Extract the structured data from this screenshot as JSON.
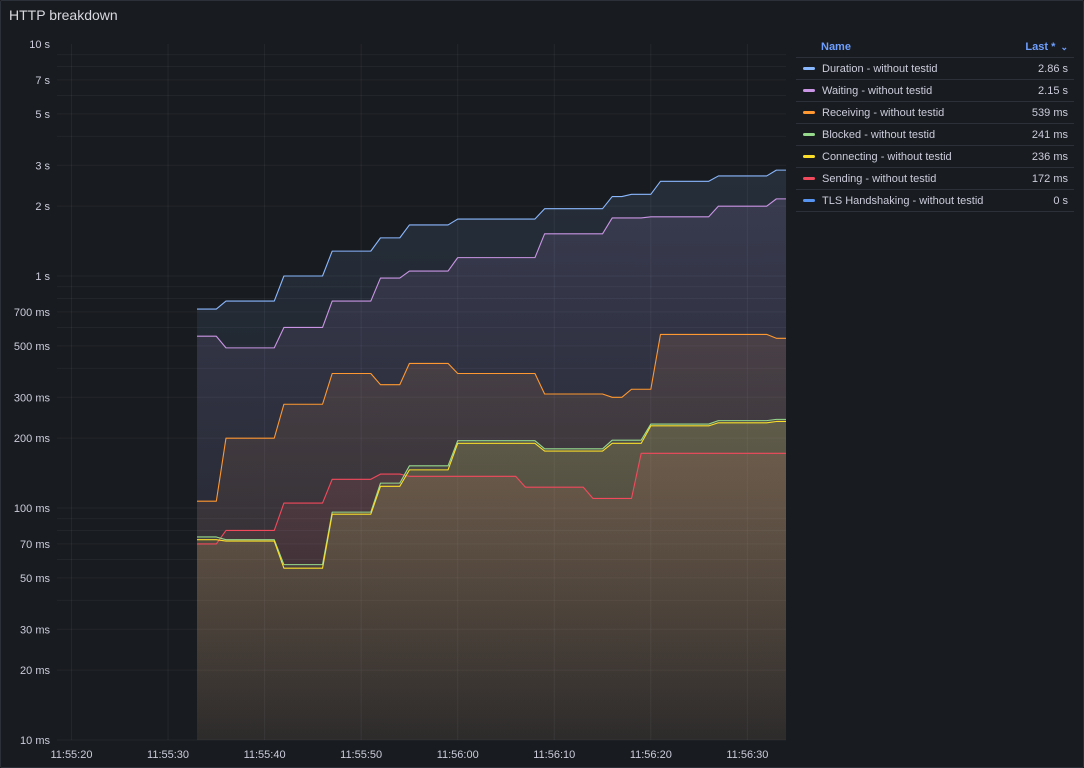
{
  "panel": {
    "title": "HTTP breakdown"
  },
  "legend": {
    "name_header": "Name",
    "value_header": "Last *",
    "sort_icon": "chevron-down-icon",
    "items": [
      {
        "name": "Duration - without testid",
        "value": "2.86 s",
        "color": "#8ab8ff"
      },
      {
        "name": "Waiting - without testid",
        "value": "2.15 s",
        "color": "#ca95e5"
      },
      {
        "name": "Receiving - without testid",
        "value": "539 ms",
        "color": "#ff9830"
      },
      {
        "name": "Blocked - without testid",
        "value": "241 ms",
        "color": "#96d98d"
      },
      {
        "name": "Connecting - without testid",
        "value": "236 ms",
        "color": "#fade2a"
      },
      {
        "name": "Sending - without testid",
        "value": "172 ms",
        "color": "#f2495c"
      },
      {
        "name": "TLS Handshaking - without testid",
        "value": "0 s",
        "color": "#5794f2"
      }
    ]
  },
  "chart_data": {
    "type": "line",
    "title": "HTTP breakdown",
    "yscale": "log",
    "ylim_ms": [
      10,
      10000
    ],
    "xlim_seconds_after_11_55_20": [
      -1.5,
      74
    ],
    "y_ticks": [
      {
        "v": 10000,
        "label": "10 s"
      },
      {
        "v": 7000,
        "label": "7 s"
      },
      {
        "v": 5000,
        "label": "5 s"
      },
      {
        "v": 3000,
        "label": "3 s"
      },
      {
        "v": 2000,
        "label": "2 s"
      },
      {
        "v": 1000,
        "label": "1 s"
      },
      {
        "v": 700,
        "label": "700 ms"
      },
      {
        "v": 500,
        "label": "500 ms"
      },
      {
        "v": 300,
        "label": "300 ms"
      },
      {
        "v": 200,
        "label": "200 ms"
      },
      {
        "v": 100,
        "label": "100 ms"
      },
      {
        "v": 70,
        "label": "70 ms"
      },
      {
        "v": 50,
        "label": "50 ms"
      },
      {
        "v": 30,
        "label": "30 ms"
      },
      {
        "v": 20,
        "label": "20 ms"
      },
      {
        "v": 10,
        "label": "10 ms"
      }
    ],
    "x_ticks": [
      {
        "t": 0,
        "label": "11:55:20"
      },
      {
        "t": 10,
        "label": "11:55:30"
      },
      {
        "t": 20,
        "label": "11:55:40"
      },
      {
        "t": 30,
        "label": "11:55:50"
      },
      {
        "t": 40,
        "label": "11:56:00"
      },
      {
        "t": 50,
        "label": "11:56:10"
      },
      {
        "t": 60,
        "label": "11:56:20"
      },
      {
        "t": 70,
        "label": "11:56:30"
      }
    ],
    "grid": true,
    "legend_position": "right",
    "series": [
      {
        "name": "Sending - without testid",
        "color": "#f2495c",
        "points": [
          [
            13,
            70
          ],
          [
            15,
            70
          ],
          [
            16,
            80
          ],
          [
            21,
            80
          ],
          [
            22,
            105
          ],
          [
            26,
            105
          ],
          [
            27,
            133
          ],
          [
            31,
            133
          ],
          [
            32,
            140
          ],
          [
            34,
            140
          ],
          [
            35,
            137
          ],
          [
            46,
            137
          ],
          [
            47,
            123
          ],
          [
            53,
            123
          ],
          [
            54,
            110
          ],
          [
            58,
            110
          ],
          [
            59,
            172
          ],
          [
            74,
            172
          ]
        ]
      },
      {
        "name": "Blocked - without testid",
        "color": "#96d98d",
        "points": [
          [
            13,
            75
          ],
          [
            15,
            75
          ],
          [
            16,
            73
          ],
          [
            21,
            73
          ],
          [
            22,
            57
          ],
          [
            26,
            57
          ],
          [
            27,
            96
          ],
          [
            31,
            96
          ],
          [
            32,
            128
          ],
          [
            34,
            128
          ],
          [
            35,
            152
          ],
          [
            39,
            152
          ],
          [
            40,
            195
          ],
          [
            48,
            195
          ],
          [
            49,
            180
          ],
          [
            55,
            180
          ],
          [
            56,
            196
          ],
          [
            59,
            196
          ],
          [
            60,
            230
          ],
          [
            66,
            230
          ],
          [
            67,
            238
          ],
          [
            72,
            238
          ],
          [
            73,
            241
          ],
          [
            74,
            241
          ]
        ]
      },
      {
        "name": "Connecting - without testid",
        "color": "#fade2a",
        "points": [
          [
            13,
            73
          ],
          [
            15,
            73
          ],
          [
            16,
            72
          ],
          [
            21,
            72
          ],
          [
            22,
            55
          ],
          [
            26,
            55
          ],
          [
            27,
            94
          ],
          [
            31,
            94
          ],
          [
            32,
            124
          ],
          [
            34,
            124
          ],
          [
            35,
            146
          ],
          [
            39,
            146
          ],
          [
            40,
            190
          ],
          [
            48,
            190
          ],
          [
            49,
            176
          ],
          [
            55,
            176
          ],
          [
            56,
            190
          ],
          [
            59,
            190
          ],
          [
            60,
            226
          ],
          [
            66,
            226
          ],
          [
            67,
            233
          ],
          [
            72,
            233
          ],
          [
            73,
            236
          ],
          [
            74,
            236
          ]
        ]
      },
      {
        "name": "Receiving - without testid",
        "color": "#ff9830",
        "points": [
          [
            13,
            107
          ],
          [
            15,
            107
          ],
          [
            16,
            200
          ],
          [
            21,
            200
          ],
          [
            22,
            280
          ],
          [
            26,
            280
          ],
          [
            27,
            380
          ],
          [
            31,
            380
          ],
          [
            32,
            340
          ],
          [
            34,
            340
          ],
          [
            35,
            420
          ],
          [
            39,
            420
          ],
          [
            40,
            380
          ],
          [
            48,
            380
          ],
          [
            49,
            310
          ],
          [
            55,
            310
          ],
          [
            56,
            300
          ],
          [
            57,
            300
          ],
          [
            58,
            325
          ],
          [
            60,
            325
          ],
          [
            61,
            560
          ],
          [
            72,
            560
          ],
          [
            73,
            539
          ],
          [
            74,
            539
          ]
        ]
      },
      {
        "name": "Waiting - without testid",
        "color": "#ca95e5",
        "points": [
          [
            13,
            550
          ],
          [
            15,
            550
          ],
          [
            16,
            490
          ],
          [
            21,
            490
          ],
          [
            22,
            600
          ],
          [
            26,
            600
          ],
          [
            27,
            780
          ],
          [
            31,
            780
          ],
          [
            32,
            980
          ],
          [
            34,
            980
          ],
          [
            35,
            1050
          ],
          [
            39,
            1050
          ],
          [
            40,
            1200
          ],
          [
            48,
            1200
          ],
          [
            49,
            1520
          ],
          [
            55,
            1520
          ],
          [
            56,
            1780
          ],
          [
            59,
            1780
          ],
          [
            60,
            1800
          ],
          [
            66,
            1800
          ],
          [
            67,
            2000
          ],
          [
            72,
            2000
          ],
          [
            73,
            2150
          ],
          [
            74,
            2150
          ]
        ]
      },
      {
        "name": "Duration - without testid",
        "color": "#8ab8ff",
        "points": [
          [
            13,
            720
          ],
          [
            15,
            720
          ],
          [
            16,
            780
          ],
          [
            21,
            780
          ],
          [
            22,
            1000
          ],
          [
            26,
            1000
          ],
          [
            27,
            1280
          ],
          [
            31,
            1280
          ],
          [
            32,
            1460
          ],
          [
            34,
            1460
          ],
          [
            35,
            1660
          ],
          [
            39,
            1660
          ],
          [
            40,
            1760
          ],
          [
            48,
            1760
          ],
          [
            49,
            1950
          ],
          [
            55,
            1950
          ],
          [
            56,
            2200
          ],
          [
            57,
            2200
          ],
          [
            58,
            2250
          ],
          [
            60,
            2250
          ],
          [
            61,
            2560
          ],
          [
            66,
            2560
          ],
          [
            67,
            2700
          ],
          [
            72,
            2700
          ],
          [
            73,
            2860
          ],
          [
            74,
            2860
          ]
        ]
      },
      {
        "name": "TLS Handshaking - without testid",
        "color": "#5794f2",
        "points": []
      }
    ]
  }
}
